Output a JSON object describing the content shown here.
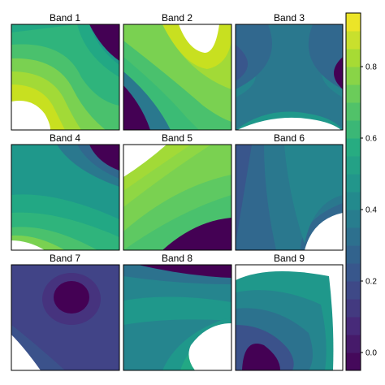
{
  "chart_data": {
    "type": "heatmap",
    "description_kind": "filled-contour small multiples",
    "layout": {
      "rows": 3,
      "cols": 3
    },
    "panels": [
      {
        "title": "Band 1",
        "levels": [
          "#1fa187",
          "#2fb47c",
          "#4ac16d",
          "#7ad151",
          "#a2da37",
          "#c8e020",
          "#ffffff"
        ],
        "corner_dark": "top-right"
      },
      {
        "title": "Band 2",
        "levels": [
          "#440154",
          "#2a788e",
          "#3bbb75",
          "#7ad151",
          "#a2da37",
          "#c8e020",
          "#ffffff"
        ],
        "corner_dark": "bottom-left"
      },
      {
        "title": "Band 3",
        "levels": [
          "#39568c",
          "#31688e",
          "#2a788e",
          "#25858e",
          "#1f988b",
          "#ffffff"
        ],
        "corner_dark": "left-right"
      },
      {
        "title": "Band 4",
        "levels": [
          "#440154",
          "#2a788e",
          "#1f988b",
          "#22a884",
          "#2fb47c",
          "#4ac16d",
          "#ffffff"
        ],
        "corner_dark": "top-right"
      },
      {
        "title": "Band 5",
        "levels": [
          "#440154",
          "#4ac16d",
          "#5ec962",
          "#7ad151",
          "#8fd744",
          "#a2da37",
          "#ffffff"
        ],
        "corner_dark": "bottom-right"
      },
      {
        "title": "Band 6",
        "levels": [
          "#39568c",
          "#31688e",
          "#2a788e",
          "#25858e",
          "#ffffff"
        ],
        "corner_dark": "none"
      },
      {
        "title": "Band 7",
        "levels": [
          "#440154",
          "#46337e",
          "#414487",
          "#3b528b",
          "#ffffff"
        ],
        "corner_dark": "center"
      },
      {
        "title": "Band 8",
        "levels": [
          "#440154",
          "#2c728e",
          "#25858e",
          "#1f988b",
          "#22a884",
          "#ffffff"
        ],
        "corner_dark": "top"
      },
      {
        "title": "Band 9",
        "levels": [
          "#440154",
          "#3b528b",
          "#2c728e",
          "#25858e",
          "#1f988b",
          "#ffffff"
        ],
        "corner_dark": "bottom-left"
      }
    ],
    "colorbar": {
      "ticks": [
        "0.0",
        "0.2",
        "0.4",
        "0.6",
        "0.8"
      ],
      "tick_values": [
        0.0,
        0.2,
        0.4,
        0.6,
        0.8
      ],
      "range": [
        -0.05,
        0.95
      ],
      "colormap": "viridis",
      "levels": 20
    }
  }
}
